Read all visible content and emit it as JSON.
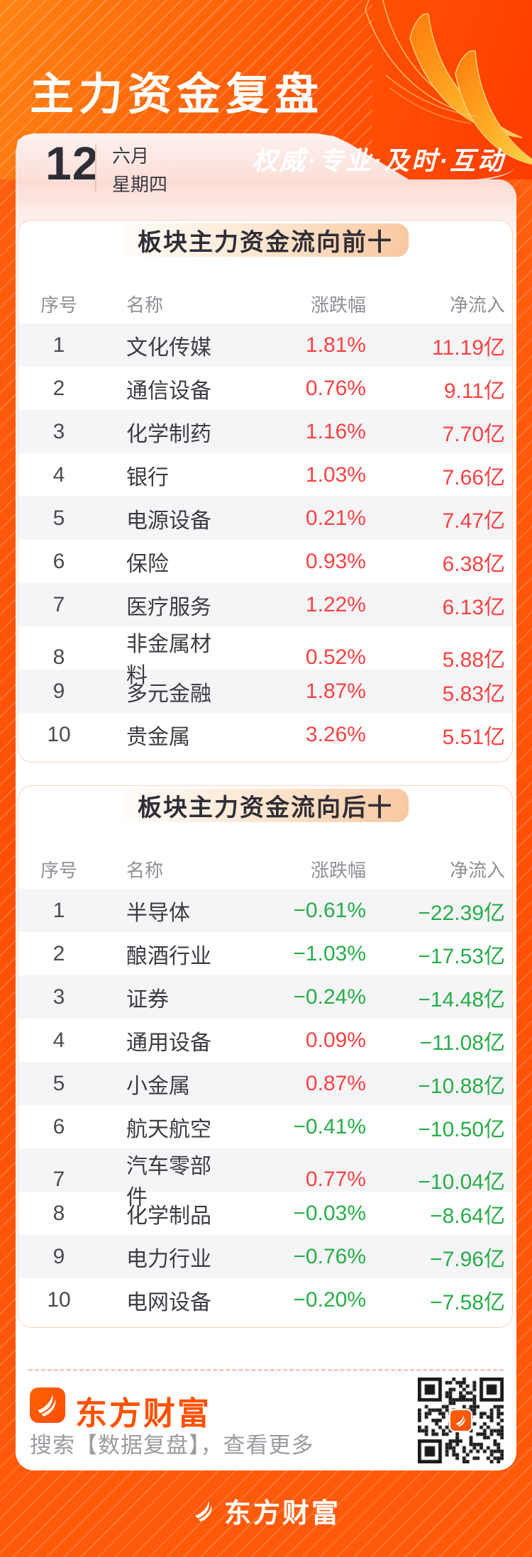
{
  "header": {
    "title": "主力资金复盘",
    "tagline": "权威·专业·及时·互动",
    "date": {
      "day": "12",
      "month": "六月",
      "weekday": "星期四"
    }
  },
  "colors": {
    "header_orange": "#ff5c07",
    "positive_red": "#fb4242",
    "negative_green": "#27ae47",
    "brand_orange": "#ff5101"
  },
  "chart_data": [
    {
      "type": "table",
      "title": "板块主力资金流向前十",
      "columns": [
        "序号",
        "名称",
        "涨跌幅",
        "净流入"
      ],
      "rows": [
        [
          "1",
          "文化传媒",
          "1.81%",
          "11.19亿"
        ],
        [
          "2",
          "通信设备",
          "0.76%",
          "9.11亿"
        ],
        [
          "3",
          "化学制药",
          "1.16%",
          "7.70亿"
        ],
        [
          "4",
          "银行",
          "1.03%",
          "7.66亿"
        ],
        [
          "5",
          "电源设备",
          "0.21%",
          "7.47亿"
        ],
        [
          "6",
          "保险",
          "0.93%",
          "6.38亿"
        ],
        [
          "7",
          "医疗服务",
          "1.22%",
          "6.13亿"
        ],
        [
          "8",
          "非金属材料",
          "0.52%",
          "5.88亿"
        ],
        [
          "9",
          "多元金融",
          "1.87%",
          "5.83亿"
        ],
        [
          "10",
          "贵金属",
          "3.26%",
          "5.51亿"
        ]
      ]
    },
    {
      "type": "table",
      "title": "板块主力资金流向后十",
      "columns": [
        "序号",
        "名称",
        "涨跌幅",
        "净流入"
      ],
      "rows": [
        [
          "1",
          "半导体",
          "−0.61%",
          "−22.39亿"
        ],
        [
          "2",
          "酿酒行业",
          "−1.03%",
          "−17.53亿"
        ],
        [
          "3",
          "证券",
          "−0.24%",
          "−14.48亿"
        ],
        [
          "4",
          "通用设备",
          "0.09%",
          "−11.08亿"
        ],
        [
          "5",
          "小金属",
          "0.87%",
          "−10.88亿"
        ],
        [
          "6",
          "航天航空",
          "−0.41%",
          "−10.50亿"
        ],
        [
          "7",
          "汽车零部件",
          "0.77%",
          "−10.04亿"
        ],
        [
          "8",
          "化学制品",
          "−0.03%",
          "−8.64亿"
        ],
        [
          "9",
          "电力行业",
          "−0.76%",
          "−7.96亿"
        ],
        [
          "10",
          "电网设备",
          "−0.20%",
          "−7.58亿"
        ]
      ]
    }
  ],
  "footer": {
    "brand": "东方财富",
    "search_hint": "搜索【数据复盘】，查看更多"
  },
  "bottom": {
    "brand": "东方财富"
  }
}
